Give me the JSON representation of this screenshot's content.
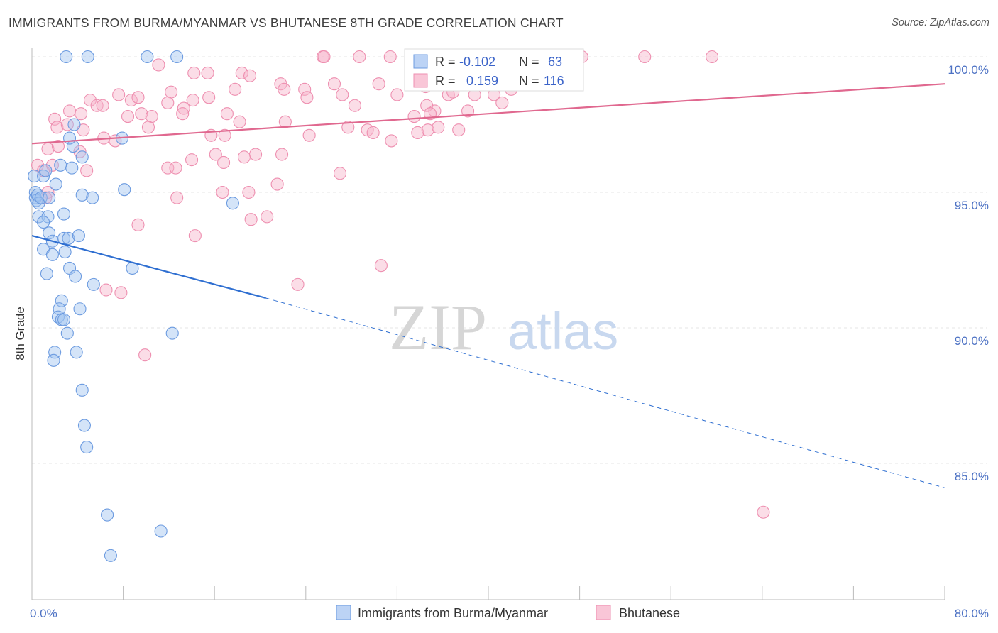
{
  "header": {
    "title": "IMMIGRANTS FROM BURMA/MYANMAR VS BHUTANESE 8TH GRADE CORRELATION CHART",
    "source": "Source: ZipAtlas.com"
  },
  "watermark": {
    "zip": "ZIP",
    "atlas": "atlas"
  },
  "legend": {
    "r_label": "R =",
    "n_label": "N =",
    "rows": [
      {
        "r": "-0.102",
        "n": "63"
      },
      {
        "r": "0.159",
        "n": "116"
      }
    ]
  },
  "bottom_legend": [
    "Immigrants from Burma/Myanmar",
    "Bhutanese"
  ],
  "chart_data": {
    "type": "scatter",
    "title": "IMMIGRANTS FROM BURMA/MYANMAR VS BHUTANESE 8TH GRADE CORRELATION CHART",
    "ylabel": "8th Grade",
    "xlabel": "",
    "xlim": [
      0,
      80
    ],
    "ylim": [
      80.5,
      100.5
    ],
    "x_tick_labels": [
      {
        "value": 0,
        "label": "0.0%"
      },
      {
        "value": 80,
        "label": "80.0%"
      }
    ],
    "x_ticks": [
      0,
      8,
      16,
      24,
      32,
      40,
      48,
      56,
      64,
      72,
      80
    ],
    "y_tick_labels": [
      {
        "value": 100,
        "label": "100.0%"
      },
      {
        "value": 95,
        "label": "95.0%"
      },
      {
        "value": 90,
        "label": "90.0%"
      },
      {
        "value": 85,
        "label": "85.0%"
      }
    ],
    "grid": true,
    "legend_position": "top-center",
    "colors": {
      "burma": "#6c9be0",
      "bhutanese": "#ee8fb0",
      "burma_line": "#2f6fd1",
      "bhutanese_line": "#e0688f"
    },
    "series": [
      {
        "name": "Immigrants from Burma/Myanmar",
        "r": -0.102,
        "n": 63,
        "trend": {
          "x0": 0,
          "y0": 93.4,
          "x1": 20.5,
          "y1": 91.1,
          "dash_x1": 80,
          "dash_y1": 84.1
        },
        "points": [
          [
            3.0,
            100
          ],
          [
            4.9,
            100
          ],
          [
            10.1,
            100
          ],
          [
            12.7,
            100
          ],
          [
            0.2,
            95.6
          ],
          [
            0.3,
            95.0
          ],
          [
            0.3,
            94.8
          ],
          [
            0.4,
            94.7
          ],
          [
            0.5,
            94.9
          ],
          [
            0.6,
            94.6
          ],
          [
            0.8,
            94.8
          ],
          [
            1.0,
            95.6
          ],
          [
            1.2,
            95.8
          ],
          [
            1.5,
            94.8
          ],
          [
            0.6,
            94.1
          ],
          [
            1.4,
            94.1
          ],
          [
            2.8,
            94.2
          ],
          [
            1.0,
            93.9
          ],
          [
            1.5,
            93.5
          ],
          [
            1.8,
            93.2
          ],
          [
            2.8,
            93.3
          ],
          [
            3.2,
            93.3
          ],
          [
            4.1,
            93.4
          ],
          [
            1.0,
            92.9
          ],
          [
            1.8,
            92.7
          ],
          [
            2.9,
            92.8
          ],
          [
            1.3,
            92.0
          ],
          [
            3.3,
            92.2
          ],
          [
            3.8,
            91.9
          ],
          [
            5.4,
            91.6
          ],
          [
            8.8,
            92.2
          ],
          [
            2.5,
            96.0
          ],
          [
            3.5,
            95.9
          ],
          [
            2.1,
            95.3
          ],
          [
            4.4,
            94.9
          ],
          [
            5.3,
            94.8
          ],
          [
            8.1,
            95.1
          ],
          [
            17.6,
            94.6
          ],
          [
            3.6,
            96.7
          ],
          [
            4.4,
            96.3
          ],
          [
            3.3,
            97.0
          ],
          [
            3.7,
            97.5
          ],
          [
            7.9,
            97.0
          ],
          [
            2.6,
            91.0
          ],
          [
            2.4,
            90.7
          ],
          [
            4.2,
            90.7
          ],
          [
            2.3,
            90.4
          ],
          [
            2.6,
            90.3
          ],
          [
            2.8,
            90.3
          ],
          [
            3.1,
            89.8
          ],
          [
            12.3,
            89.8
          ],
          [
            2.0,
            89.1
          ],
          [
            3.9,
            89.1
          ],
          [
            1.9,
            88.8
          ],
          [
            4.4,
            87.7
          ],
          [
            4.6,
            86.4
          ],
          [
            4.8,
            85.6
          ],
          [
            6.6,
            83.1
          ],
          [
            11.3,
            82.5
          ],
          [
            6.9,
            81.6
          ]
        ]
      },
      {
        "name": "Bhutanese",
        "r": 0.159,
        "n": 116,
        "trend": {
          "x0": 0,
          "y0": 96.8,
          "x1": 80,
          "y1": 99.0
        },
        "points": [
          [
            25.5,
            100
          ],
          [
            25.6,
            100
          ],
          [
            28.7,
            100
          ],
          [
            31.4,
            100
          ],
          [
            39.3,
            100
          ],
          [
            42.6,
            100
          ],
          [
            53.7,
            100
          ],
          [
            59.6,
            100
          ],
          [
            11.1,
            99.7
          ],
          [
            14.2,
            99.4
          ],
          [
            15.4,
            99.4
          ],
          [
            18.4,
            99.4
          ],
          [
            19.1,
            99.3
          ],
          [
            21.8,
            99.0
          ],
          [
            26.5,
            99.0
          ],
          [
            30.4,
            99.0
          ],
          [
            37.5,
            99.0
          ],
          [
            41.6,
            99.4
          ],
          [
            12.2,
            98.7
          ],
          [
            17.8,
            98.8
          ],
          [
            22.1,
            98.8
          ],
          [
            23.9,
            98.8
          ],
          [
            27.2,
            98.6
          ],
          [
            32.0,
            98.6
          ],
          [
            36.5,
            98.6
          ],
          [
            38.8,
            98.6
          ],
          [
            40.5,
            98.6
          ],
          [
            5.1,
            98.4
          ],
          [
            5.7,
            98.2
          ],
          [
            6.2,
            98.2
          ],
          [
            7.6,
            98.6
          ],
          [
            8.7,
            98.4
          ],
          [
            9.3,
            98.5
          ],
          [
            11.9,
            98.3
          ],
          [
            13.3,
            98.1
          ],
          [
            14.1,
            98.4
          ],
          [
            15.5,
            98.5
          ],
          [
            24.1,
            98.5
          ],
          [
            28.3,
            98.2
          ],
          [
            34.6,
            98.2
          ],
          [
            35.3,
            98.0
          ],
          [
            2.0,
            97.7
          ],
          [
            3.3,
            98.0
          ],
          [
            4.3,
            97.9
          ],
          [
            8.4,
            97.8
          ],
          [
            9.6,
            97.9
          ],
          [
            10.5,
            97.8
          ],
          [
            13.2,
            97.9
          ],
          [
            17.1,
            97.9
          ],
          [
            18.2,
            97.6
          ],
          [
            22.2,
            97.6
          ],
          [
            33.5,
            97.8
          ],
          [
            34.9,
            97.9
          ],
          [
            2.2,
            97.4
          ],
          [
            3.1,
            97.5
          ],
          [
            4.5,
            97.3
          ],
          [
            6.3,
            97.0
          ],
          [
            10.2,
            97.4
          ],
          [
            15.7,
            97.1
          ],
          [
            16.9,
            97.1
          ],
          [
            24.3,
            97.1
          ],
          [
            27.7,
            97.4
          ],
          [
            29.4,
            97.3
          ],
          [
            29.9,
            97.2
          ],
          [
            31.5,
            96.9
          ],
          [
            33.8,
            97.2
          ],
          [
            34.7,
            97.3
          ],
          [
            35.6,
            97.4
          ],
          [
            37.4,
            97.3
          ],
          [
            1.4,
            96.6
          ],
          [
            2.3,
            96.7
          ],
          [
            4.2,
            96.5
          ],
          [
            7.3,
            96.9
          ],
          [
            14.0,
            96.2
          ],
          [
            16.1,
            96.4
          ],
          [
            18.6,
            96.3
          ],
          [
            19.6,
            96.4
          ],
          [
            21.9,
            96.4
          ],
          [
            0.5,
            96.0
          ],
          [
            1.0,
            95.8
          ],
          [
            1.8,
            96.0
          ],
          [
            4.8,
            95.8
          ],
          [
            11.9,
            95.9
          ],
          [
            12.6,
            95.9
          ],
          [
            16.8,
            96.1
          ],
          [
            27.0,
            95.7
          ],
          [
            1.4,
            95.0
          ],
          [
            1.2,
            94.8
          ],
          [
            12.7,
            94.8
          ],
          [
            16.7,
            95.0
          ],
          [
            19.0,
            95.0
          ],
          [
            21.5,
            95.3
          ],
          [
            9.3,
            93.8
          ],
          [
            14.3,
            93.4
          ],
          [
            19.2,
            94.0
          ],
          [
            20.6,
            94.1
          ],
          [
            6.5,
            91.4
          ],
          [
            7.8,
            91.3
          ],
          [
            23.3,
            91.6
          ],
          [
            30.6,
            92.3
          ],
          [
            9.9,
            89.0
          ],
          [
            34.5,
            98.9
          ],
          [
            36.9,
            98.7
          ],
          [
            40.0,
            99.1
          ],
          [
            42.0,
            98.8
          ],
          [
            48.2,
            100
          ],
          [
            41.2,
            98.3
          ],
          [
            38.2,
            98.0
          ],
          [
            64.1,
            83.2
          ]
        ]
      }
    ]
  }
}
